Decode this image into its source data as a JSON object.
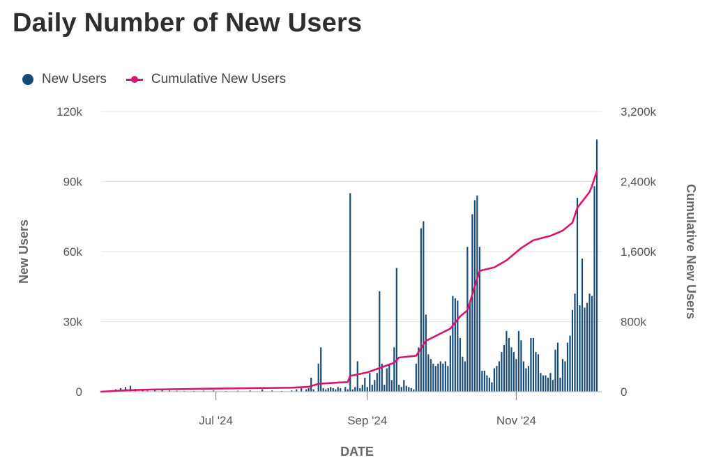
{
  "title": "Daily Number of New Users",
  "legend": [
    {
      "label": "New Users",
      "color": "#154a79",
      "icon": "circle-marker"
    },
    {
      "label": "Cumulative New Users",
      "color": "#d6156e",
      "icon": "line-with-circle-marker"
    }
  ],
  "chart_data": {
    "type": "bar",
    "title": "Daily Number of New Users",
    "xlabel": "DATE",
    "ylabel": "New Users",
    "y2label": "Cumulative New Users",
    "x_range": [
      "2024-05-15",
      "2024-12-06"
    ],
    "ylim": [
      0,
      120000
    ],
    "y2lim": [
      0,
      3200000
    ],
    "y_ticks": [
      {
        "value": 0,
        "label": "0"
      },
      {
        "value": 30000,
        "label": "30k"
      },
      {
        "value": 60000,
        "label": "60k"
      },
      {
        "value": 90000,
        "label": "90k"
      },
      {
        "value": 120000,
        "label": "120k"
      }
    ],
    "y2_ticks": [
      {
        "value": 0,
        "label": "0"
      },
      {
        "value": 800000,
        "label": "800k"
      },
      {
        "value": 1600000,
        "label": "1,600k"
      },
      {
        "value": 2400000,
        "label": "2,400k"
      },
      {
        "value": 3200000,
        "label": "3,200k"
      }
    ],
    "x_ticks": [
      {
        "date": "2024-07-01",
        "label": "Jul '24"
      },
      {
        "date": "2024-09-01",
        "label": "Sep '24"
      },
      {
        "date": "2024-11-01",
        "label": "Nov '24"
      }
    ],
    "grid": true,
    "legend_position": "top-left",
    "series": [
      {
        "name": "New Users",
        "type": "bar",
        "axis": "left",
        "color": "#154a79",
        "points": [
          [
            "2024-05-17",
            300
          ],
          [
            "2024-05-19",
            500
          ],
          [
            "2024-05-21",
            1000
          ],
          [
            "2024-05-23",
            1500
          ],
          [
            "2024-05-25",
            2000
          ],
          [
            "2024-05-27",
            2500
          ],
          [
            "2024-05-29",
            1200
          ],
          [
            "2024-06-01",
            500
          ],
          [
            "2024-06-03",
            400
          ],
          [
            "2024-06-06",
            700
          ],
          [
            "2024-06-09",
            1200
          ],
          [
            "2024-06-12",
            500
          ],
          [
            "2024-06-15",
            400
          ],
          [
            "2024-06-18",
            300
          ],
          [
            "2024-06-22",
            300
          ],
          [
            "2024-06-26",
            400
          ],
          [
            "2024-06-30",
            500
          ],
          [
            "2024-07-05",
            300
          ],
          [
            "2024-07-10",
            400
          ],
          [
            "2024-07-15",
            500
          ],
          [
            "2024-07-20",
            1000
          ],
          [
            "2024-07-24",
            500
          ],
          [
            "2024-07-28",
            300
          ],
          [
            "2024-08-01",
            500
          ],
          [
            "2024-08-03",
            1000
          ],
          [
            "2024-08-05",
            1500
          ],
          [
            "2024-08-07",
            1000
          ],
          [
            "2024-08-08",
            1500
          ],
          [
            "2024-08-09",
            6000
          ],
          [
            "2024-08-10",
            1000
          ],
          [
            "2024-08-12",
            12000
          ],
          [
            "2024-08-13",
            19000
          ],
          [
            "2024-08-14",
            1500
          ],
          [
            "2024-08-15",
            1000
          ],
          [
            "2024-08-16",
            1500
          ],
          [
            "2024-08-17",
            2000
          ],
          [
            "2024-08-18",
            1500
          ],
          [
            "2024-08-19",
            1000
          ],
          [
            "2024-08-20",
            2000
          ],
          [
            "2024-08-21",
            1500
          ],
          [
            "2024-08-23",
            2000
          ],
          [
            "2024-08-24",
            1000
          ],
          [
            "2024-08-25",
            85000
          ],
          [
            "2024-08-26",
            1000
          ],
          [
            "2024-08-27",
            2000
          ],
          [
            "2024-08-28",
            13000
          ],
          [
            "2024-08-29",
            1500
          ],
          [
            "2024-08-30",
            3000
          ],
          [
            "2024-08-31",
            6000
          ],
          [
            "2024-09-01",
            2000
          ],
          [
            "2024-09-02",
            8000
          ],
          [
            "2024-09-03",
            3000
          ],
          [
            "2024-09-04",
            5000
          ],
          [
            "2024-09-05",
            8000
          ],
          [
            "2024-09-06",
            43000
          ],
          [
            "2024-09-07",
            12000
          ],
          [
            "2024-09-08",
            3000
          ],
          [
            "2024-09-09",
            10000
          ],
          [
            "2024-09-10",
            12000
          ],
          [
            "2024-09-11",
            5000
          ],
          [
            "2024-09-12",
            19000
          ],
          [
            "2024-09-13",
            53000
          ],
          [
            "2024-09-14",
            3000
          ],
          [
            "2024-09-15",
            2000
          ],
          [
            "2024-09-16",
            5000
          ],
          [
            "2024-09-17",
            2500
          ],
          [
            "2024-09-18",
            2000
          ],
          [
            "2024-09-19",
            1500
          ],
          [
            "2024-09-20",
            1000
          ],
          [
            "2024-09-21",
            12000
          ],
          [
            "2024-09-22",
            19000
          ],
          [
            "2024-09-23",
            70000
          ],
          [
            "2024-09-24",
            73000
          ],
          [
            "2024-09-25",
            33000
          ],
          [
            "2024-09-26",
            16000
          ],
          [
            "2024-09-27",
            14000
          ],
          [
            "2024-09-28",
            12000
          ],
          [
            "2024-09-29",
            11000
          ],
          [
            "2024-09-30",
            12000
          ],
          [
            "2024-10-01",
            13000
          ],
          [
            "2024-10-02",
            12000
          ],
          [
            "2024-10-03",
            13000
          ],
          [
            "2024-10-04",
            11000
          ],
          [
            "2024-10-05",
            24000
          ],
          [
            "2024-10-06",
            41000
          ],
          [
            "2024-10-07",
            40000
          ],
          [
            "2024-10-08",
            39000
          ],
          [
            "2024-10-09",
            23000
          ],
          [
            "2024-10-10",
            15000
          ],
          [
            "2024-10-11",
            13000
          ],
          [
            "2024-10-12",
            62000
          ],
          [
            "2024-10-13",
            38000
          ],
          [
            "2024-10-14",
            76000
          ],
          [
            "2024-10-15",
            82000
          ],
          [
            "2024-10-16",
            84000
          ],
          [
            "2024-10-17",
            62000
          ],
          [
            "2024-10-18",
            9000
          ],
          [
            "2024-10-19",
            9000
          ],
          [
            "2024-10-20",
            7000
          ],
          [
            "2024-10-21",
            6000
          ],
          [
            "2024-10-22",
            4000
          ],
          [
            "2024-10-23",
            10000
          ],
          [
            "2024-10-24",
            11000
          ],
          [
            "2024-10-25",
            13000
          ],
          [
            "2024-10-26",
            17000
          ],
          [
            "2024-10-27",
            20000
          ],
          [
            "2024-10-28",
            26000
          ],
          [
            "2024-10-29",
            23000
          ],
          [
            "2024-10-30",
            19000
          ],
          [
            "2024-10-31",
            17000
          ],
          [
            "2024-11-01",
            14000
          ],
          [
            "2024-11-02",
            26000
          ],
          [
            "2024-11-03",
            22000
          ],
          [
            "2024-11-04",
            13000
          ],
          [
            "2024-11-05",
            10000
          ],
          [
            "2024-11-06",
            11000
          ],
          [
            "2024-11-07",
            23000
          ],
          [
            "2024-11-08",
            23000
          ],
          [
            "2024-11-09",
            17000
          ],
          [
            "2024-11-10",
            16000
          ],
          [
            "2024-11-11",
            8000
          ],
          [
            "2024-11-12",
            7000
          ],
          [
            "2024-11-13",
            7000
          ],
          [
            "2024-11-14",
            6000
          ],
          [
            "2024-11-15",
            8000
          ],
          [
            "2024-11-16",
            5000
          ],
          [
            "2024-11-17",
            18000
          ],
          [
            "2024-11-18",
            21000
          ],
          [
            "2024-11-19",
            6000
          ],
          [
            "2024-11-20",
            14000
          ],
          [
            "2024-11-21",
            13000
          ],
          [
            "2024-11-22",
            21000
          ],
          [
            "2024-11-23",
            24000
          ],
          [
            "2024-11-24",
            35000
          ],
          [
            "2024-11-25",
            42000
          ],
          [
            "2024-11-26",
            83000
          ],
          [
            "2024-11-27",
            37000
          ],
          [
            "2024-11-28",
            57000
          ],
          [
            "2024-11-29",
            36000
          ],
          [
            "2024-11-30",
            38000
          ],
          [
            "2024-12-01",
            42000
          ],
          [
            "2024-12-02",
            41000
          ],
          [
            "2024-12-03",
            88000
          ],
          [
            "2024-12-04",
            108000
          ]
        ]
      },
      {
        "name": "Cumulative New Users",
        "type": "line",
        "axis": "right",
        "color": "#d6156e",
        "points": [
          [
            "2024-05-15",
            0
          ],
          [
            "2024-05-25",
            15000
          ],
          [
            "2024-06-05",
            25000
          ],
          [
            "2024-07-01",
            35000
          ],
          [
            "2024-08-01",
            45000
          ],
          [
            "2024-08-08",
            55000
          ],
          [
            "2024-08-12",
            90000
          ],
          [
            "2024-08-24",
            110000
          ],
          [
            "2024-08-25",
            180000
          ],
          [
            "2024-09-01",
            220000
          ],
          [
            "2024-09-06",
            270000
          ],
          [
            "2024-09-12",
            330000
          ],
          [
            "2024-09-14",
            390000
          ],
          [
            "2024-09-21",
            410000
          ],
          [
            "2024-09-25",
            580000
          ],
          [
            "2024-09-30",
            650000
          ],
          [
            "2024-10-05",
            720000
          ],
          [
            "2024-10-09",
            860000
          ],
          [
            "2024-10-12",
            930000
          ],
          [
            "2024-10-17",
            1380000
          ],
          [
            "2024-10-23",
            1420000
          ],
          [
            "2024-10-28",
            1500000
          ],
          [
            "2024-11-03",
            1640000
          ],
          [
            "2024-11-08",
            1730000
          ],
          [
            "2024-11-15",
            1780000
          ],
          [
            "2024-11-20",
            1840000
          ],
          [
            "2024-11-24",
            1930000
          ],
          [
            "2024-11-26",
            2100000
          ],
          [
            "2024-12-01",
            2280000
          ],
          [
            "2024-12-02",
            2350000
          ],
          [
            "2024-12-04",
            2520000
          ]
        ]
      }
    ]
  }
}
